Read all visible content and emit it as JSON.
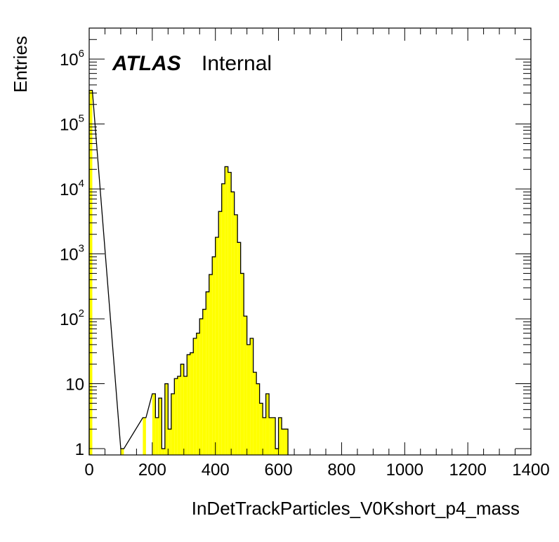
{
  "chart_data": {
    "type": "bar",
    "style": "histogram-step-filled",
    "fill_color": "#ffff00",
    "line_color": "#000000",
    "label_main": "ATLAS",
    "label_sub": "Internal",
    "xlabel": "InDetTrackParticles_V0Kshort_p4_mass",
    "ylabel": "Entries",
    "xlim": [
      0,
      1400
    ],
    "ylim": [
      0.8,
      3000000
    ],
    "y_scale": "log",
    "x_tick_labels": [
      "0",
      "200",
      "400",
      "600",
      "800",
      "1000",
      "1200",
      "1400"
    ],
    "y_tick_labels": [
      {
        "base": "1",
        "exp": ""
      },
      {
        "base": "10",
        "exp": ""
      },
      {
        "base": "10",
        "exp": "2"
      },
      {
        "base": "10",
        "exp": "3"
      },
      {
        "base": "10",
        "exp": "4"
      },
      {
        "base": "10",
        "exp": "5"
      },
      {
        "base": "10",
        "exp": "6"
      }
    ],
    "bin_width": 10,
    "bins_start": [
      0,
      100,
      170,
      200,
      210,
      220,
      230,
      240,
      250,
      260,
      270,
      280,
      290,
      300,
      310,
      320,
      330,
      340,
      350,
      360,
      370,
      380,
      390,
      400,
      410,
      420,
      430,
      440,
      450,
      460,
      470,
      480,
      490,
      500,
      510,
      520,
      530,
      540,
      550,
      560,
      570,
      580,
      590,
      600,
      610,
      620,
      630,
      640,
      650,
      660,
      670,
      680,
      690,
      700,
      710,
      720,
      730,
      740,
      750,
      760,
      770,
      780
    ],
    "values": [
      330000,
      1,
      3,
      7,
      3,
      6,
      1,
      10,
      2,
      7,
      12,
      13,
      20,
      13,
      28,
      30,
      50,
      60,
      100,
      140,
      260,
      480,
      900,
      1800,
      4500,
      12000,
      22000,
      18000,
      9000,
      4000,
      1500,
      500,
      110,
      40,
      50,
      15,
      10,
      5,
      3,
      7,
      3,
      3,
      1,
      3,
      2,
      2,
      0,
      0,
      0,
      0,
      0,
      0,
      0,
      0,
      0,
      0,
      0,
      0,
      0,
      0,
      0,
      0
    ]
  }
}
